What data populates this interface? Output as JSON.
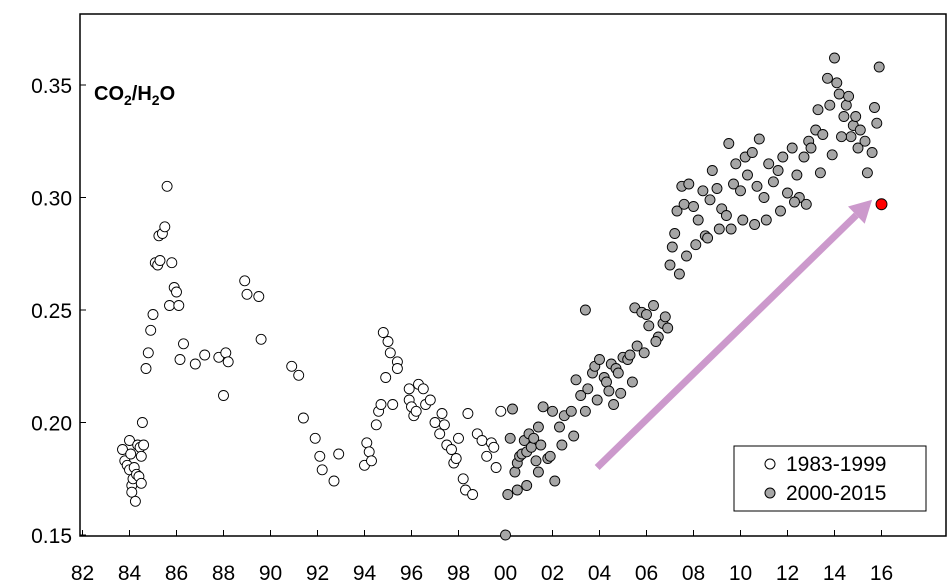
{
  "chart_data": {
    "type": "scatter",
    "title": "",
    "xlabel": "",
    "ylabel": "",
    "annotation": {
      "base1": "CO",
      "sub1": "2",
      "slash": "/H",
      "sub2": "2",
      "tail": "O"
    },
    "xlim": [
      82,
      16
    ],
    "xlim_note": "two-digit years 1982–2016",
    "ylim": [
      0.15,
      0.37
    ],
    "x_ticks": [
      "82",
      "84",
      "86",
      "88",
      "90",
      "92",
      "94",
      "96",
      "98",
      "00",
      "02",
      "04",
      "06",
      "08",
      "10",
      "12",
      "14",
      "16"
    ],
    "y_ticks": [
      "0.15",
      "0.20",
      "0.25",
      "0.30",
      "0.35"
    ],
    "grid": false,
    "legend_position": "bottom-right",
    "colors": {
      "series1_fill": "#ffffff",
      "series2_fill": "#a6a6a6",
      "highlight": "#ff0000",
      "arrow": "#cc99cc"
    },
    "series": [
      {
        "name": "1983-1999",
        "x": [
          1983.7,
          1983.8,
          1983.9,
          1984.0,
          1984.0,
          1984.05,
          1984.1,
          1984.1,
          1984.15,
          1984.2,
          1984.25,
          1984.3,
          1984.35,
          1984.4,
          1984.45,
          1984.5,
          1984.5,
          1984.55,
          1984.6,
          1984.7,
          1984.8,
          1984.9,
          1985.0,
          1985.1,
          1985.2,
          1985.25,
          1985.3,
          1985.4,
          1985.5,
          1985.6,
          1985.7,
          1985.8,
          1985.9,
          1986.0,
          1986.1,
          1986.15,
          1986.3,
          1986.8,
          1987.2,
          1987.8,
          1988.0,
          1988.1,
          1988.2,
          1988.9,
          1989.0,
          1989.5,
          1989.6,
          1990.9,
          1991.2,
          1991.4,
          1991.9,
          1992.1,
          1992.2,
          1992.7,
          1992.9,
          1994.0,
          1994.1,
          1994.2,
          1994.3,
          1994.5,
          1994.6,
          1994.7,
          1994.8,
          1994.9,
          1995.0,
          1995.1,
          1995.2,
          1995.4,
          1995.4,
          1995.9,
          1995.9,
          1996.0,
          1996.1,
          1996.2,
          1996.3,
          1996.5,
          1996.6,
          1996.8,
          1997.0,
          1997.2,
          1997.3,
          1997.4,
          1997.5,
          1997.7,
          1997.8,
          1997.9,
          1998.0,
          1998.2,
          1998.3,
          1998.4,
          1998.6,
          1998.8,
          1999.0,
          1999.2,
          1999.4,
          1999.5,
          1999.6,
          1999.8
        ],
        "y": [
          0.188,
          0.183,
          0.181,
          0.192,
          0.179,
          0.186,
          0.172,
          0.169,
          0.175,
          0.18,
          0.165,
          0.177,
          0.19,
          0.176,
          0.189,
          0.185,
          0.173,
          0.2,
          0.19,
          0.224,
          0.231,
          0.241,
          0.248,
          0.271,
          0.27,
          0.283,
          0.272,
          0.284,
          0.287,
          0.305,
          0.252,
          0.271,
          0.26,
          0.258,
          0.252,
          0.228,
          0.235,
          0.226,
          0.23,
          0.229,
          0.212,
          0.231,
          0.227,
          0.263,
          0.257,
          0.256,
          0.237,
          0.225,
          0.221,
          0.202,
          0.193,
          0.185,
          0.179,
          0.174,
          0.186,
          0.181,
          0.191,
          0.187,
          0.183,
          0.199,
          0.205,
          0.208,
          0.24,
          0.22,
          0.236,
          0.231,
          0.208,
          0.227,
          0.224,
          0.215,
          0.21,
          0.207,
          0.203,
          0.205,
          0.217,
          0.215,
          0.208,
          0.21,
          0.2,
          0.195,
          0.204,
          0.199,
          0.19,
          0.188,
          0.182,
          0.184,
          0.193,
          0.175,
          0.17,
          0.204,
          0.168,
          0.195,
          0.192,
          0.185,
          0.191,
          0.189,
          0.18,
          0.205
        ]
      },
      {
        "name": "2000-2015",
        "x": [
          2000.0,
          2000.1,
          2000.2,
          2000.3,
          2000.4,
          2000.5,
          2000.6,
          2000.7,
          2000.8,
          2000.9,
          2001.0,
          2001.1,
          2001.2,
          2001.3,
          2001.4,
          2001.5,
          2001.6,
          2001.8,
          2002.0,
          2002.1,
          2002.3,
          2002.5,
          2002.8,
          2003.0,
          2003.2,
          2003.4,
          2003.5,
          2003.7,
          2003.8,
          2004.0,
          2004.2,
          2004.3,
          2004.5,
          2004.6,
          2004.7,
          2004.8,
          2005.0,
          2005.2,
          2005.3,
          2005.5,
          2005.6,
          2005.8,
          2006.0,
          2006.1,
          2006.3,
          2006.5,
          2006.7,
          2006.8,
          2007.0,
          2007.1,
          2007.2,
          2007.3,
          2007.5,
          2007.6,
          2007.8,
          2008.0,
          2008.2,
          2008.4,
          2008.5,
          2008.7,
          2008.8,
          2009.0,
          2009.2,
          2009.4,
          2009.5,
          2009.7,
          2009.8,
          2010.0,
          2010.2,
          2010.3,
          2010.5,
          2010.7,
          2010.8,
          2011.0,
          2011.2,
          2011.4,
          2011.6,
          2011.8,
          2012.0,
          2012.2,
          2012.4,
          2012.5,
          2012.7,
          2012.9,
          2013.0,
          2013.2,
          2013.3,
          2013.5,
          2013.7,
          2013.8,
          2014.0,
          2014.1,
          2014.2,
          2014.4,
          2014.5,
          2014.7,
          2014.8,
          2015.0,
          2015.1,
          2015.3,
          2015.4,
          2015.6,
          2015.7,
          2015.8,
          2015.9,
          2014.9,
          2014.6,
          2014.3,
          2013.9,
          2013.4,
          2012.8,
          2012.3,
          2011.7,
          2011.1,
          2010.6,
          2010.1,
          2009.6,
          2009.1,
          2008.6,
          2008.1,
          2007.7,
          2007.4,
          2006.9,
          2006.4,
          2005.9,
          2005.4,
          2004.9,
          2004.4,
          2003.9,
          2003.4,
          2002.9,
          2002.4,
          2001.9,
          2001.4,
          2000.9,
          2000.5
        ],
        "y": [
          0.15,
          0.168,
          0.193,
          0.206,
          0.178,
          0.182,
          0.185,
          0.186,
          0.192,
          0.187,
          0.195,
          0.189,
          0.193,
          0.183,
          0.198,
          0.19,
          0.207,
          0.184,
          0.205,
          0.174,
          0.198,
          0.203,
          0.205,
          0.219,
          0.212,
          0.25,
          0.215,
          0.222,
          0.225,
          0.228,
          0.22,
          0.218,
          0.226,
          0.208,
          0.224,
          0.222,
          0.229,
          0.228,
          0.23,
          0.251,
          0.234,
          0.249,
          0.248,
          0.243,
          0.252,
          0.238,
          0.244,
          0.247,
          0.27,
          0.278,
          0.284,
          0.294,
          0.305,
          0.297,
          0.306,
          0.296,
          0.29,
          0.303,
          0.283,
          0.299,
          0.312,
          0.304,
          0.295,
          0.292,
          0.324,
          0.306,
          0.315,
          0.303,
          0.318,
          0.31,
          0.32,
          0.305,
          0.326,
          0.3,
          0.315,
          0.307,
          0.312,
          0.318,
          0.302,
          0.322,
          0.31,
          0.3,
          0.318,
          0.325,
          0.322,
          0.33,
          0.339,
          0.328,
          0.353,
          0.341,
          0.362,
          0.351,
          0.346,
          0.336,
          0.341,
          0.327,
          0.332,
          0.322,
          0.33,
          0.325,
          0.311,
          0.32,
          0.34,
          0.333,
          0.358,
          0.336,
          0.345,
          0.327,
          0.319,
          0.311,
          0.297,
          0.298,
          0.294,
          0.29,
          0.288,
          0.29,
          0.286,
          0.286,
          0.282,
          0.279,
          0.274,
          0.266,
          0.242,
          0.236,
          0.231,
          0.218,
          0.213,
          0.214,
          0.21,
          0.205,
          0.194,
          0.19,
          0.185,
          0.178,
          0.172,
          0.17
        ]
      }
    ],
    "highlight_point": {
      "x": 2016.0,
      "y": 0.297
    },
    "arrow": {
      "from": [
        2003.9,
        0.18
      ],
      "to": [
        2015.6,
        0.299
      ]
    },
    "legend": [
      {
        "label": "1983-1999",
        "marker": "open-circle"
      },
      {
        "label": "2000-2015",
        "marker": "gray-circle"
      }
    ]
  }
}
